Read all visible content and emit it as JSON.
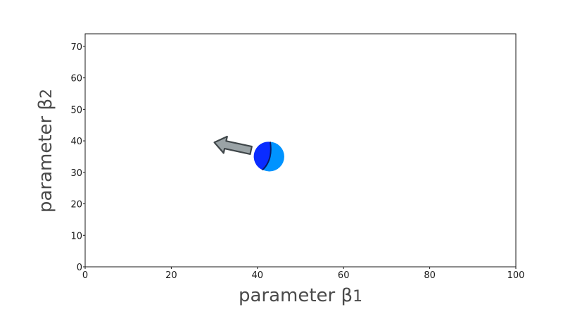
{
  "chart_data": {
    "type": "scatter",
    "title": "",
    "xlabel": "parameter β",
    "xlabel_sub": "1",
    "ylabel": "parameter β",
    "ylabel_sub": "2",
    "xlim": [
      0,
      100
    ],
    "ylim": [
      0,
      74
    ],
    "xticks": [
      0,
      20,
      40,
      60,
      80,
      100
    ],
    "yticks": [
      0,
      10,
      20,
      30,
      40,
      50,
      60,
      70
    ],
    "grid": false,
    "points": [
      {
        "x": 42.8,
        "y": 35,
        "marker": "two-tone circle",
        "colors": [
          "#0a2cff",
          "#0093ff"
        ]
      }
    ],
    "annotations": [
      {
        "type": "arrow",
        "from": [
          38.5,
          37
        ],
        "to": [
          30,
          39.5
        ],
        "color": "#9aa3a6"
      }
    ]
  }
}
